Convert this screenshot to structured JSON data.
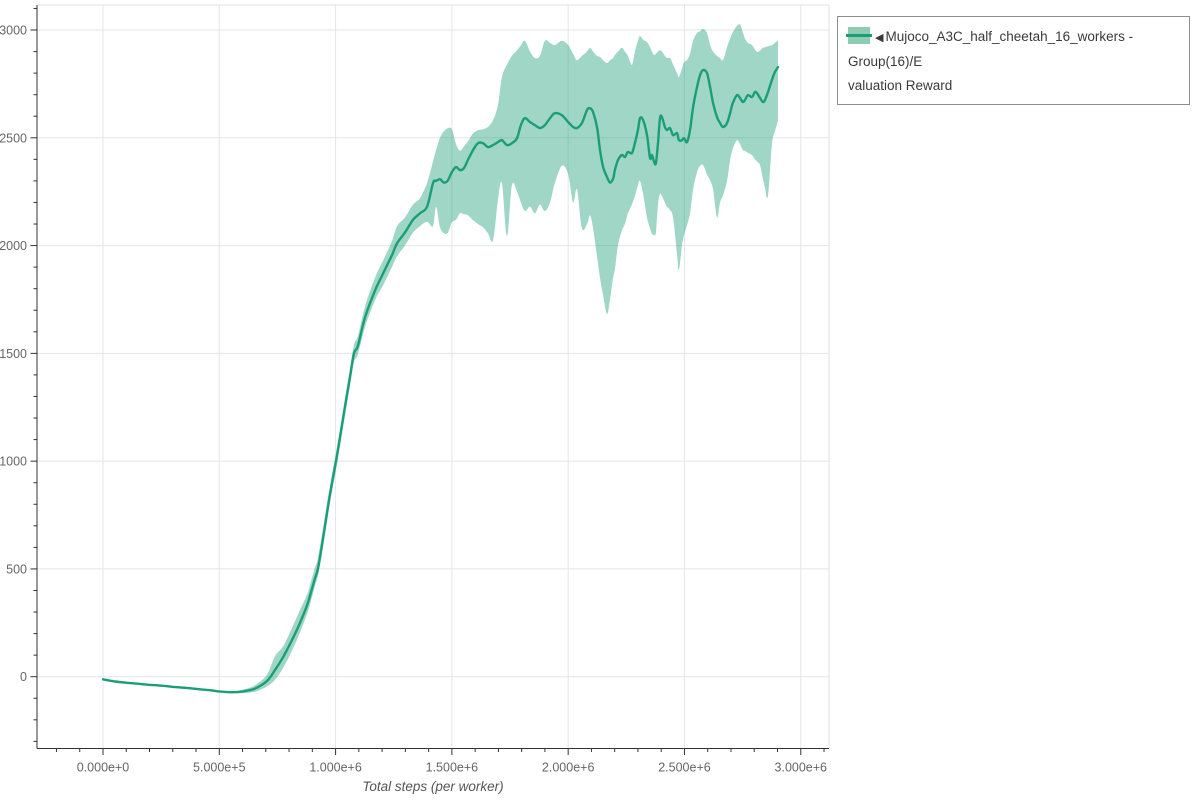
{
  "page": {
    "background": "#ffffff"
  },
  "colors": {
    "grid": "#e5e5e5",
    "plot_border": "#e0e0e0",
    "axis": "#333333",
    "tick_label": "#666666",
    "axis_title": "#555555",
    "series_line": "#1b9e77",
    "series_band": "#1b9e77",
    "legend_border": "#8e8e8e"
  },
  "legend": {
    "marker": "◀",
    "label_line1": "Mujoco_A3C_half_cheetah_16_workers - Group(16)/E",
    "label_line2": "valuation Reward",
    "swatch": "band-with-line-swatch"
  },
  "chart_data": {
    "type": "line",
    "title": "",
    "xlabel": "Total steps (per worker)",
    "ylabel": "",
    "grid": true,
    "legend_position": "top-right-outside",
    "x_axis": {
      "range": [
        -283700,
        3121400
      ],
      "major_ticks": [
        0,
        500000,
        1000000,
        1500000,
        2000000,
        2500000,
        3000000
      ],
      "major_tick_labels": [
        "0.000e+0",
        "5.000e+5",
        "1.000e+6",
        "1.500e+6",
        "2.000e+6",
        "2.500e+6",
        "3.000e+6"
      ],
      "minor_tick_step": 100000
    },
    "y_axis": {
      "range": [
        -333,
        3116
      ],
      "major_ticks": [
        0,
        500,
        1000,
        1500,
        2000,
        2500,
        3000
      ],
      "major_tick_labels": [
        "0",
        "500",
        "1000",
        "1500",
        "2000",
        "2500",
        "3000"
      ],
      "minor_tick_step": 100
    },
    "series": [
      {
        "name": "Mujoco_A3C_half_cheetah_16_workers - Group(16)/Evaluation Reward",
        "color": "#1b9e77",
        "band_opacity": 0.42,
        "x": [
          0,
          52000,
          103000,
          155000,
          206000,
          258000,
          310000,
          361000,
          413000,
          464000,
          499000,
          550000,
          602000,
          653000,
          705000,
          739000,
          774000,
          808000,
          843000,
          877000,
          894000,
          911000,
          924000,
          946000,
          963000,
          980000,
          1002000,
          1019000,
          1040000,
          1062000,
          1079000,
          1096000,
          1126000,
          1169000,
          1204000,
          1242000,
          1264000,
          1298000,
          1333000,
          1363000,
          1393000,
          1419000,
          1432000,
          1449000,
          1466000,
          1483000,
          1500000,
          1518000,
          1535000,
          1552000,
          1569000,
          1591000,
          1612000,
          1634000,
          1655000,
          1677000,
          1698000,
          1715000,
          1737000,
          1758000,
          1780000,
          1797000,
          1814000,
          1836000,
          1857000,
          1879000,
          1900000,
          1922000,
          1943000,
          1973000,
          2000000,
          2021000,
          2038000,
          2059000,
          2081000,
          2094000,
          2107000,
          2124000,
          2137000,
          2150000,
          2167000,
          2180000,
          2193000,
          2201000,
          2214000,
          2231000,
          2244000,
          2257000,
          2274000,
          2287000,
          2300000,
          2309000,
          2322000,
          2339000,
          2352000,
          2360000,
          2369000,
          2377000,
          2386000,
          2395000,
          2403000,
          2416000,
          2425000,
          2438000,
          2451000,
          2468000,
          2476000,
          2489000,
          2498000,
          2511000,
          2524000,
          2537000,
          2554000,
          2567000,
          2580000,
          2597000,
          2610000,
          2623000,
          2640000,
          2653000,
          2666000,
          2683000,
          2696000,
          2708000,
          2726000,
          2739000,
          2751000,
          2760000,
          2773000,
          2790000,
          2803000,
          2812000,
          2825000,
          2837000,
          2846000,
          2859000,
          2876000,
          2889000,
          2902000
        ],
        "mean": [
          -12,
          -22,
          -28,
          -33,
          -38,
          -42,
          -48,
          -52,
          -58,
          -63,
          -68,
          -72,
          -68,
          -55,
          -20,
          30,
          90,
          160,
          240,
          330,
          390,
          455,
          500,
          640,
          760,
          870,
          1000,
          1110,
          1250,
          1390,
          1500,
          1535,
          1665,
          1790,
          1870,
          1955,
          2010,
          2060,
          2120,
          2150,
          2180,
          2290,
          2300,
          2308,
          2292,
          2303,
          2341,
          2364,
          2350,
          2360,
          2397,
          2443,
          2475,
          2475,
          2457,
          2466,
          2480,
          2489,
          2466,
          2475,
          2498,
          2560,
          2591,
          2573,
          2559,
          2545,
          2559,
          2591,
          2614,
          2605,
          2573,
          2550,
          2545,
          2568,
          2629,
          2637,
          2619,
          2550,
          2443,
          2365,
          2318,
          2292,
          2310,
          2350,
          2396,
          2420,
          2411,
          2434,
          2429,
          2475,
          2536,
          2591,
          2582,
          2512,
          2406,
          2420,
          2390,
          2382,
          2475,
          2591,
          2596,
          2550,
          2536,
          2545,
          2512,
          2522,
          2489,
          2489,
          2498,
          2480,
          2536,
          2642,
          2735,
          2791,
          2814,
          2800,
          2735,
          2661,
          2596,
          2568,
          2550,
          2568,
          2614,
          2661,
          2698,
          2684,
          2666,
          2675,
          2698,
          2689,
          2712,
          2707,
          2684,
          2666,
          2675,
          2712,
          2768,
          2805,
          2828
        ],
        "lower": [
          -15,
          -25,
          -31,
          -36,
          -41,
          -45,
          -51,
          -55,
          -61,
          -66,
          -71,
          -76,
          -76,
          -70,
          -45,
          -15,
          40,
          110,
          195,
          290,
          350,
          420,
          465,
          600,
          720,
          830,
          960,
          1070,
          1210,
          1350,
          1460,
          1495,
          1620,
          1745,
          1815,
          1900,
          1950,
          2000,
          2060,
          2090,
          2110,
          2090,
          2180,
          2085,
          2057,
          2060,
          2108,
          2120,
          2150,
          2145,
          2141,
          2118,
          2100,
          2085,
          2057,
          2024,
          2210,
          2290,
          2045,
          2280,
          2250,
          2200,
          2160,
          2180,
          2150,
          2190,
          2160,
          2200,
          2290,
          2370,
          2330,
          2200,
          2260,
          2080,
          2100,
          2140,
          2080,
          1950,
          1850,
          1770,
          1682,
          1750,
          1850,
          1890,
          2000,
          2070,
          2100,
          2150,
          2190,
          2230,
          2280,
          2300,
          2240,
          2130,
          2080,
          2055,
          2050,
          2060,
          2190,
          2240,
          2230,
          2200,
          2180,
          2165,
          2130,
          1960,
          1886,
          2000,
          2048,
          2094,
          2150,
          2260,
          2340,
          2370,
          2373,
          2330,
          2303,
          2260,
          2130,
          2200,
          2234,
          2300,
          2396,
          2450,
          2489,
          2470,
          2443,
          2440,
          2430,
          2420,
          2400,
          2390,
          2373,
          2310,
          2270,
          2230,
          2470,
          2530,
          2580
        ],
        "upper": [
          -9,
          -19,
          -25,
          -30,
          -35,
          -39,
          -45,
          -49,
          -55,
          -60,
          -65,
          -68,
          -60,
          -40,
          10,
          95,
          140,
          215,
          300,
          380,
          440,
          505,
          550,
          690,
          805,
          910,
          1040,
          1150,
          1290,
          1430,
          1540,
          1580,
          1715,
          1850,
          1930,
          2020,
          2090,
          2130,
          2190,
          2220,
          2290,
          2390,
          2443,
          2500,
          2530,
          2545,
          2540,
          2470,
          2440,
          2460,
          2483,
          2520,
          2535,
          2540,
          2550,
          2582,
          2650,
          2780,
          2840,
          2880,
          2905,
          2930,
          2950,
          2900,
          2870,
          2880,
          2950,
          2940,
          2930,
          2950,
          2930,
          2890,
          2860,
          2880,
          2900,
          2917,
          2900,
          2880,
          2875,
          2860,
          2847,
          2860,
          2870,
          2884,
          2900,
          2917,
          2900,
          2880,
          2838,
          2900,
          2950,
          2972,
          2955,
          2944,
          2920,
          2900,
          2884,
          2890,
          2900,
          2907,
          2900,
          2880,
          2870,
          2870,
          2840,
          2800,
          2782,
          2820,
          2850,
          2861,
          2890,
          2950,
          2986,
          2995,
          3005,
          2985,
          2930,
          2900,
          2880,
          2870,
          2861,
          2920,
          2960,
          2990,
          3020,
          3025,
          2990,
          2960,
          2940,
          2930,
          2910,
          2898,
          2905,
          2917,
          2920,
          2925,
          2930,
          2940,
          2953
        ]
      }
    ]
  }
}
